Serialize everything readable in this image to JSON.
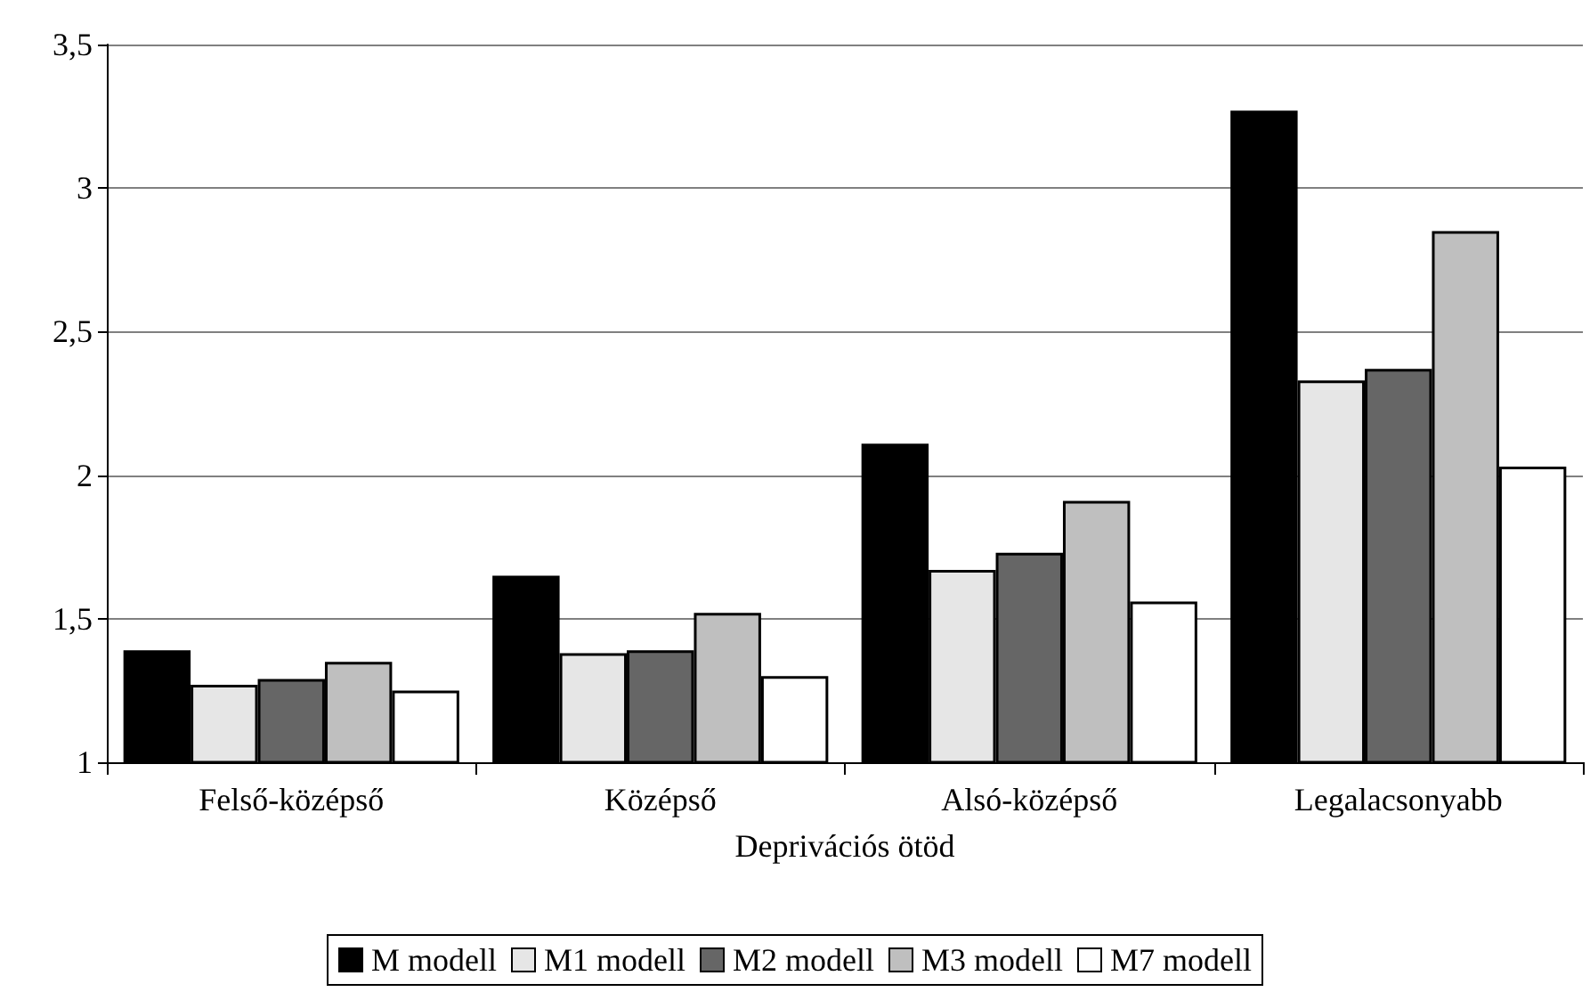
{
  "chart_data": {
    "type": "bar",
    "xlabel": "Deprivációs ötöd",
    "categories": [
      "Felső-középső",
      "Középső",
      "Alsó-középső",
      "Legalacsonyabb"
    ],
    "series": [
      {
        "name": "M modell",
        "color": "#000000",
        "values": [
          1.39,
          1.65,
          2.11,
          3.27
        ]
      },
      {
        "name": "M1 modell",
        "color": "#e6e6e6",
        "values": [
          1.27,
          1.38,
          1.67,
          2.33
        ]
      },
      {
        "name": "M2 modell",
        "color": "#666666",
        "values": [
          1.29,
          1.39,
          1.73,
          2.37
        ]
      },
      {
        "name": "M3 modell",
        "color": "#bfbfbf",
        "values": [
          1.35,
          1.52,
          1.91,
          2.85
        ]
      },
      {
        "name": "M7 modell",
        "color": "#ffffff",
        "values": [
          1.25,
          1.3,
          1.56,
          2.03
        ]
      }
    ],
    "ylim": [
      1,
      3.5
    ],
    "yticks": [
      {
        "value": 1,
        "label": "1"
      },
      {
        "value": 1.5,
        "label": "1,5"
      },
      {
        "value": 2,
        "label": "2"
      },
      {
        "value": 2.5,
        "label": "2,5"
      },
      {
        "value": 3,
        "label": "3"
      },
      {
        "value": 3.5,
        "label": "3,5"
      }
    ],
    "grid": "y",
    "legend": "bottom"
  }
}
